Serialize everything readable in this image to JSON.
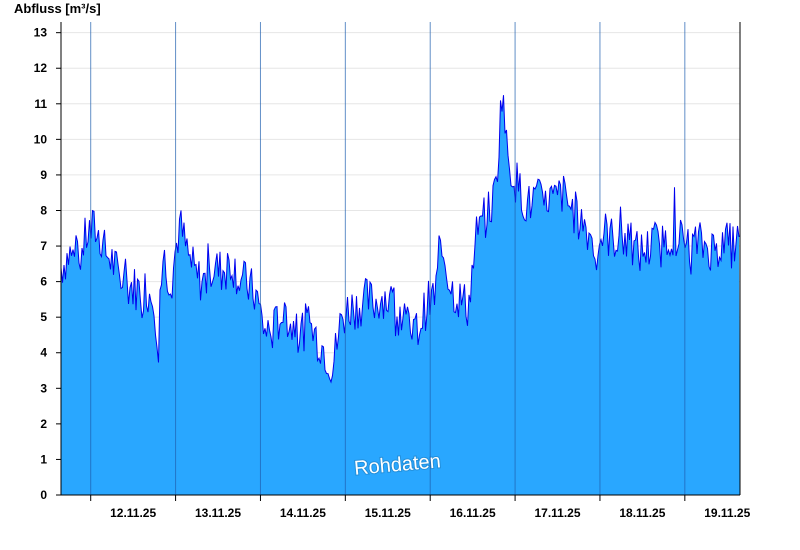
{
  "chart_data": {
    "type": "area",
    "ylabel": "Abfluss [m³/s]",
    "xlabel": "",
    "title": "",
    "watermark": "Rohdaten",
    "ylim": [
      0,
      13.3
    ],
    "yticks": [
      0,
      1,
      2,
      3,
      4,
      5,
      6,
      7,
      8,
      9,
      10,
      11,
      12,
      13
    ],
    "grid": true,
    "x_tick_labels": [
      "12.11.25",
      "13.11.25",
      "14.11.25",
      "15.11.25",
      "16.11.25",
      "17.11.25",
      "18.11.25",
      "19.11.25"
    ],
    "x_range_days": [
      11.65,
      19.65
    ],
    "fill_color": "#29a7ff",
    "line_color": "#0000ee",
    "series": [
      {
        "x_days": [
          11.65,
          11.75,
          11.85,
          11.95,
          12.05,
          12.15,
          12.25,
          12.35,
          12.45,
          12.55,
          12.65,
          12.75,
          12.8,
          12.85,
          12.9,
          12.95,
          13.0,
          13.05,
          13.15,
          13.25,
          13.35,
          13.45,
          13.55,
          13.65,
          13.75,
          13.85,
          13.95,
          14.05,
          14.15,
          14.25,
          14.35,
          14.45,
          14.55,
          14.65,
          14.75,
          14.85,
          14.95,
          15.05,
          15.15,
          15.25,
          15.35,
          15.45,
          15.55,
          15.65,
          15.75,
          15.85,
          15.95,
          16.05,
          16.15,
          16.25,
          16.35,
          16.45,
          16.55,
          16.65,
          16.75,
          16.8,
          16.85,
          16.9,
          16.95,
          17.05,
          17.15,
          17.25,
          17.35,
          17.4,
          17.45,
          17.55,
          17.65,
          17.75,
          17.85,
          17.95,
          18.05,
          18.15,
          18.25,
          18.35,
          18.45,
          18.55,
          18.65,
          18.75,
          18.85,
          18.95,
          19.05,
          19.15,
          19.25,
          19.35,
          19.45,
          19.55,
          19.65
        ],
        "values": [
          6.4,
          6.8,
          6.5,
          7.3,
          7.5,
          6.9,
          6.6,
          6.0,
          5.9,
          5.8,
          5.8,
          5.5,
          4.2,
          6.8,
          6.3,
          6.0,
          6.9,
          7.6,
          6.7,
          6.1,
          6.0,
          6.4,
          6.3,
          6.6,
          6.1,
          5.9,
          5.6,
          4.6,
          4.6,
          5.1,
          4.8,
          4.5,
          4.8,
          4.5,
          4.1,
          3.6,
          4.9,
          5.3,
          5.3,
          5.5,
          5.4,
          5.6,
          5.4,
          5.2,
          4.6,
          4.6,
          5.3,
          5.6,
          6.9,
          5.8,
          5.5,
          5.3,
          7.4,
          7.8,
          8.3,
          9.5,
          11.6,
          9.7,
          9.2,
          8.6,
          8.1,
          8.4,
          8.0,
          8.5,
          8.2,
          8.5,
          8.1,
          7.8,
          7.5,
          6.9,
          7.4,
          7.2,
          7.3,
          7.0,
          6.8,
          6.9,
          7.1,
          7.0,
          7.4,
          7.2,
          6.9,
          7.1,
          7.0,
          6.9,
          7.1,
          7.0,
          7.1
        ]
      }
    ]
  }
}
